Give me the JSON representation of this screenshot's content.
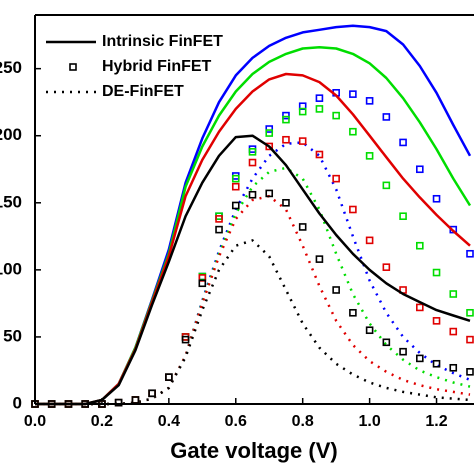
{
  "chart_data": {
    "type": "line",
    "xlabel": "Gate voltage (V)",
    "xlim": [
      0,
      1.3
    ],
    "ylim": [
      0,
      290
    ],
    "xticks": [
      {
        "value": 0,
        "label": "0.0"
      },
      0.2,
      0.4,
      0.6,
      0.8,
      {
        "value": 1,
        "label": "1.0"
      },
      1.2
    ],
    "yticks": [
      0,
      50,
      100,
      150,
      200,
      250
    ],
    "x": [
      0,
      0.05,
      0.1,
      0.15,
      0.2,
      0.25,
      0.3,
      0.35,
      0.4,
      0.45,
      0.5,
      0.55,
      0.6,
      0.65,
      0.7,
      0.75,
      0.8,
      0.85,
      0.9,
      0.95,
      1.0,
      1.05,
      1.1,
      1.15,
      1.2,
      1.25,
      1.3
    ],
    "series": [
      {
        "color": "#0000ff",
        "style": "dotted",
        "values": [
          0,
          0,
          0,
          0,
          0,
          0,
          1,
          4,
          12,
          36,
          77,
          114,
          145,
          168,
          185,
          194,
          195,
          185,
          160,
          125,
          92,
          68,
          50,
          38,
          29,
          23,
          18
        ]
      },
      {
        "color": "#00dd00",
        "style": "dotted",
        "values": [
          0,
          0,
          0,
          0,
          0,
          0,
          1,
          4,
          12,
          36,
          76,
          112,
          142,
          162,
          173,
          176,
          168,
          145,
          112,
          82,
          60,
          44,
          33,
          25,
          20,
          16,
          13
        ]
      },
      {
        "color": "#e00000",
        "style": "dotted",
        "values": [
          0,
          0,
          0,
          0,
          0,
          0,
          1,
          4,
          12,
          36,
          75,
          110,
          138,
          152,
          155,
          145,
          118,
          88,
          62,
          44,
          32,
          24,
          18,
          14,
          11,
          9,
          7
        ]
      },
      {
        "name": "DE-FinFET",
        "color": "#000000",
        "style": "dotted",
        "values": [
          0,
          0,
          0,
          0,
          0,
          0,
          1,
          4,
          12,
          35,
          70,
          100,
          118,
          122,
          110,
          85,
          60,
          42,
          30,
          22,
          16,
          12,
          9,
          7,
          5,
          4,
          3
        ]
      },
      {
        "color": "#0000ff",
        "style": "square",
        "values": [
          0,
          0,
          0,
          0,
          0,
          1,
          3,
          8,
          20,
          50,
          95,
          140,
          170,
          190,
          205,
          215,
          222,
          228,
          232,
          231,
          226,
          214,
          195,
          175,
          153,
          130,
          112
        ]
      },
      {
        "color": "#00dd00",
        "style": "square",
        "values": [
          0,
          0,
          0,
          0,
          0,
          1,
          3,
          8,
          20,
          50,
          95,
          140,
          168,
          188,
          202,
          212,
          218,
          220,
          215,
          203,
          185,
          163,
          140,
          118,
          98,
          82,
          68
        ]
      },
      {
        "color": "#e00000",
        "style": "square",
        "values": [
          0,
          0,
          0,
          0,
          0,
          1,
          3,
          8,
          20,
          50,
          94,
          138,
          162,
          180,
          192,
          197,
          196,
          186,
          168,
          145,
          122,
          102,
          85,
          72,
          62,
          54,
          48
        ]
      },
      {
        "name": "Hybrid FinFET",
        "color": "#000000",
        "style": "square",
        "values": [
          0,
          0,
          0,
          0,
          0,
          1,
          3,
          8,
          20,
          48,
          90,
          130,
          148,
          156,
          157,
          150,
          132,
          108,
          85,
          68,
          55,
          46,
          39,
          34,
          30,
          27,
          24
        ]
      },
      {
        "color": "#0000ff",
        "style": "solid",
        "values": [
          0,
          0,
          0,
          0,
          3,
          15,
          42,
          78,
          115,
          165,
          198,
          225,
          245,
          258,
          267,
          273,
          277,
          279,
          281,
          282,
          281,
          278,
          268,
          252,
          232,
          208,
          185
        ]
      },
      {
        "color": "#00dd00",
        "style": "solid",
        "values": [
          0,
          0,
          0,
          0,
          3,
          15,
          42,
          77,
          112,
          162,
          192,
          215,
          233,
          246,
          255,
          261,
          265,
          266,
          265,
          261,
          254,
          243,
          228,
          210,
          190,
          168,
          148
        ]
      },
      {
        "color": "#e00000",
        "style": "solid",
        "values": [
          0,
          0,
          0,
          0,
          3,
          15,
          41,
          76,
          110,
          155,
          182,
          203,
          220,
          233,
          242,
          246,
          245,
          240,
          230,
          216,
          200,
          184,
          168,
          154,
          141,
          129,
          118
        ]
      },
      {
        "name": "Intrinsic FinFET",
        "color": "#000000",
        "style": "solid",
        "values": [
          0,
          0,
          0,
          0,
          3,
          14,
          40,
          74,
          106,
          140,
          165,
          185,
          199,
          200,
          192,
          178,
          160,
          142,
          126,
          112,
          100,
          90,
          82,
          76,
          70,
          66,
          62
        ]
      }
    ]
  }
}
